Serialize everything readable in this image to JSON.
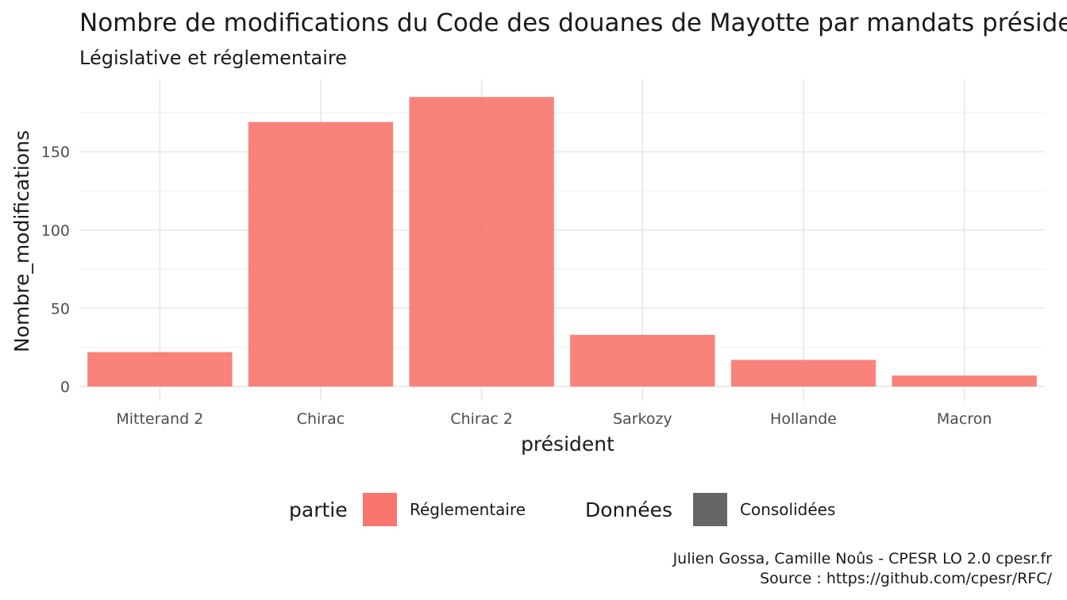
{
  "chart_data": {
    "type": "bar",
    "title": "Nombre de modifications du Code des douanes de Mayotte par mandats présidentiels",
    "subtitle": "Législative et réglementaire",
    "xlabel": "président",
    "ylabel": "Nombre_modifications",
    "categories": [
      "Mitterand 2",
      "Chirac",
      "Chirac 2",
      "Sarkozy",
      "Hollande",
      "Macron"
    ],
    "series": [
      {
        "name": "Réglementaire",
        "values": [
          22,
          169,
          185,
          33,
          17,
          7
        ],
        "color": "#f8766d"
      }
    ],
    "ylim": [
      0,
      195
    ],
    "yticks": [
      0,
      50,
      100,
      150
    ],
    "grid": true,
    "legend": {
      "position": "bottom",
      "groups": [
        {
          "title": "partie",
          "items": [
            {
              "label": "Réglementaire",
              "color": "#f8766d"
            }
          ]
        },
        {
          "title": "Données",
          "items": [
            {
              "label": "Consolidées",
              "color": "#666666"
            }
          ]
        }
      ]
    },
    "caption": [
      "Julien Gossa, Camille Noûs - CPESR LO 2.0 cpesr.fr",
      "Source : https://github.com/cpesr/RFC/"
    ]
  }
}
